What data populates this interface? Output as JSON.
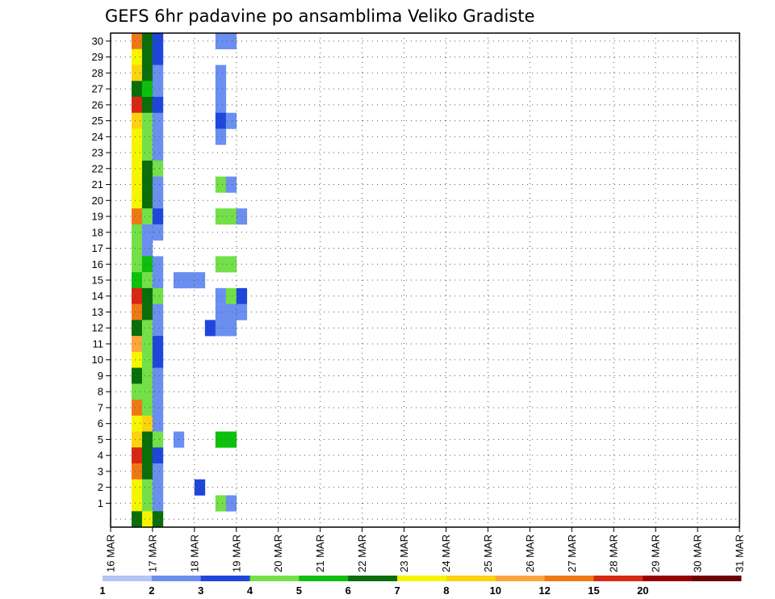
{
  "chart_data": {
    "type": "heatmap",
    "title": "GEFS 6hr padavine po ansamblima Veliko Gradiste",
    "xlabel": "",
    "ylabel": "",
    "x_tick_labels": [
      "16 MAR",
      "17 MAR",
      "18 MAR",
      "19 MAR",
      "20 MAR",
      "21 MAR",
      "22 MAR",
      "23 MAR",
      "24 MAR",
      "25 MAR",
      "26 MAR",
      "27 MAR",
      "28 MAR",
      "29 MAR",
      "30 MAR",
      "31 MAR"
    ],
    "y_tick_labels": [
      "1",
      "2",
      "3",
      "4",
      "5",
      "6",
      "7",
      "8",
      "9",
      "10",
      "11",
      "12",
      "13",
      "14",
      "15",
      "16",
      "17",
      "18",
      "19",
      "20",
      "21",
      "22",
      "23",
      "24",
      "25",
      "26",
      "27",
      "28",
      "29",
      "30"
    ],
    "x_range": [
      "16 MAR",
      "31 MAR"
    ],
    "y_range": [
      0,
      30
    ],
    "time_step_hours": 6,
    "grid": "dotted",
    "legend_placement": "bottom",
    "color_scale": {
      "labels": [
        "1",
        "2",
        "3",
        "4",
        "5",
        "6",
        "7",
        "8",
        "10",
        "12",
        "15",
        "20"
      ],
      "colors": [
        "#b4c5f5",
        "#6a8ff0",
        "#1e46dc",
        "#73e048",
        "#0cc00c",
        "#0a6e0a",
        "#f5f500",
        "#fcd30e",
        "#fca53c",
        "#f07814",
        "#d72814",
        "#960000",
        "#6e0000"
      ]
    },
    "cells": [
      [
        2,
        30,
        9
      ],
      [
        3,
        30,
        5
      ],
      [
        4,
        30,
        2
      ],
      [
        10,
        30,
        1
      ],
      [
        11,
        30,
        1
      ],
      [
        2,
        29,
        6
      ],
      [
        3,
        29,
        5
      ],
      [
        4,
        29,
        2
      ],
      [
        2,
        28,
        7
      ],
      [
        3,
        28,
        5
      ],
      [
        4,
        28,
        1
      ],
      [
        2,
        27,
        5
      ],
      [
        3,
        27,
        4
      ],
      [
        4,
        27,
        1
      ],
      [
        2,
        26,
        10
      ],
      [
        3,
        26,
        5
      ],
      [
        4,
        26,
        2
      ],
      [
        2,
        25,
        7
      ],
      [
        3,
        25,
        3
      ],
      [
        4,
        25,
        1
      ],
      [
        2,
        24,
        6
      ],
      [
        3,
        24,
        3
      ],
      [
        4,
        24,
        1
      ],
      [
        2,
        23,
        6
      ],
      [
        3,
        23,
        3
      ],
      [
        4,
        23,
        1
      ],
      [
        2,
        22,
        6
      ],
      [
        3,
        22,
        5
      ],
      [
        4,
        22,
        3
      ],
      [
        2,
        21,
        6
      ],
      [
        3,
        21,
        5
      ],
      [
        4,
        21,
        1
      ],
      [
        2,
        20,
        6
      ],
      [
        3,
        20,
        5
      ],
      [
        4,
        20,
        1
      ],
      [
        2,
        19,
        9
      ],
      [
        3,
        19,
        3
      ],
      [
        4,
        19,
        2
      ],
      [
        2,
        18,
        3
      ],
      [
        3,
        18,
        1
      ],
      [
        4,
        18,
        1
      ],
      [
        2,
        17,
        3
      ],
      [
        3,
        17,
        1
      ],
      [
        2,
        16,
        3
      ],
      [
        3,
        16,
        4
      ],
      [
        4,
        16,
        1
      ],
      [
        2,
        15,
        4
      ],
      [
        3,
        15,
        3
      ],
      [
        4,
        15,
        1
      ],
      [
        2,
        14,
        10
      ],
      [
        3,
        14,
        5
      ],
      [
        4,
        14,
        3
      ],
      [
        2,
        13,
        9
      ],
      [
        3,
        13,
        5
      ],
      [
        4,
        13,
        1
      ],
      [
        2,
        12,
        5
      ],
      [
        3,
        12,
        3
      ],
      [
        4,
        12,
        1
      ],
      [
        2,
        11,
        8
      ],
      [
        3,
        11,
        3
      ],
      [
        4,
        11,
        2
      ],
      [
        2,
        10,
        6
      ],
      [
        3,
        10,
        3
      ],
      [
        4,
        10,
        2
      ],
      [
        2,
        9,
        5
      ],
      [
        3,
        9,
        3
      ],
      [
        4,
        9,
        1
      ],
      [
        2,
        8,
        3
      ],
      [
        3,
        8,
        3
      ],
      [
        4,
        8,
        1
      ],
      [
        2,
        7,
        9
      ],
      [
        3,
        7,
        3
      ],
      [
        4,
        7,
        1
      ],
      [
        2,
        6,
        6
      ],
      [
        3,
        6,
        7
      ],
      [
        4,
        6,
        1
      ],
      [
        2,
        5,
        7
      ],
      [
        3,
        5,
        5
      ],
      [
        4,
        5,
        3
      ],
      [
        2,
        4,
        10
      ],
      [
        3,
        4,
        5
      ],
      [
        4,
        4,
        2
      ],
      [
        2,
        3,
        9
      ],
      [
        3,
        3,
        5
      ],
      [
        4,
        3,
        1
      ],
      [
        2,
        2,
        6
      ],
      [
        3,
        2,
        3
      ],
      [
        4,
        2,
        1
      ],
      [
        2,
        1,
        6
      ],
      [
        3,
        1,
        3
      ],
      [
        4,
        1,
        1
      ],
      [
        2,
        0,
        5
      ],
      [
        3,
        0,
        6
      ],
      [
        4,
        0,
        5
      ],
      [
        10,
        28,
        1
      ],
      [
        10,
        27,
        1
      ],
      [
        10,
        26,
        1
      ],
      [
        10,
        25,
        2
      ],
      [
        11,
        25,
        1
      ],
      [
        10,
        24,
        1
      ],
      [
        10,
        21,
        3
      ],
      [
        11,
        21,
        1
      ],
      [
        10,
        19,
        3
      ],
      [
        11,
        19,
        3
      ],
      [
        12,
        19,
        1
      ],
      [
        10,
        16,
        3
      ],
      [
        11,
        16,
        3
      ],
      [
        10,
        14,
        1
      ],
      [
        11,
        14,
        3
      ],
      [
        12,
        14,
        2
      ],
      [
        10,
        13,
        1
      ],
      [
        11,
        13,
        1
      ],
      [
        12,
        13,
        1
      ],
      [
        9,
        12,
        2
      ],
      [
        10,
        12,
        1
      ],
      [
        11,
        12,
        1
      ],
      [
        10,
        5,
        4
      ],
      [
        11,
        5,
        4
      ],
      [
        10,
        1,
        3
      ],
      [
        11,
        1,
        1
      ],
      [
        8,
        2,
        2
      ],
      [
        6,
        15,
        1
      ],
      [
        7,
        15,
        1
      ],
      [
        8,
        15,
        1
      ],
      [
        6,
        5,
        1
      ]
    ]
  }
}
